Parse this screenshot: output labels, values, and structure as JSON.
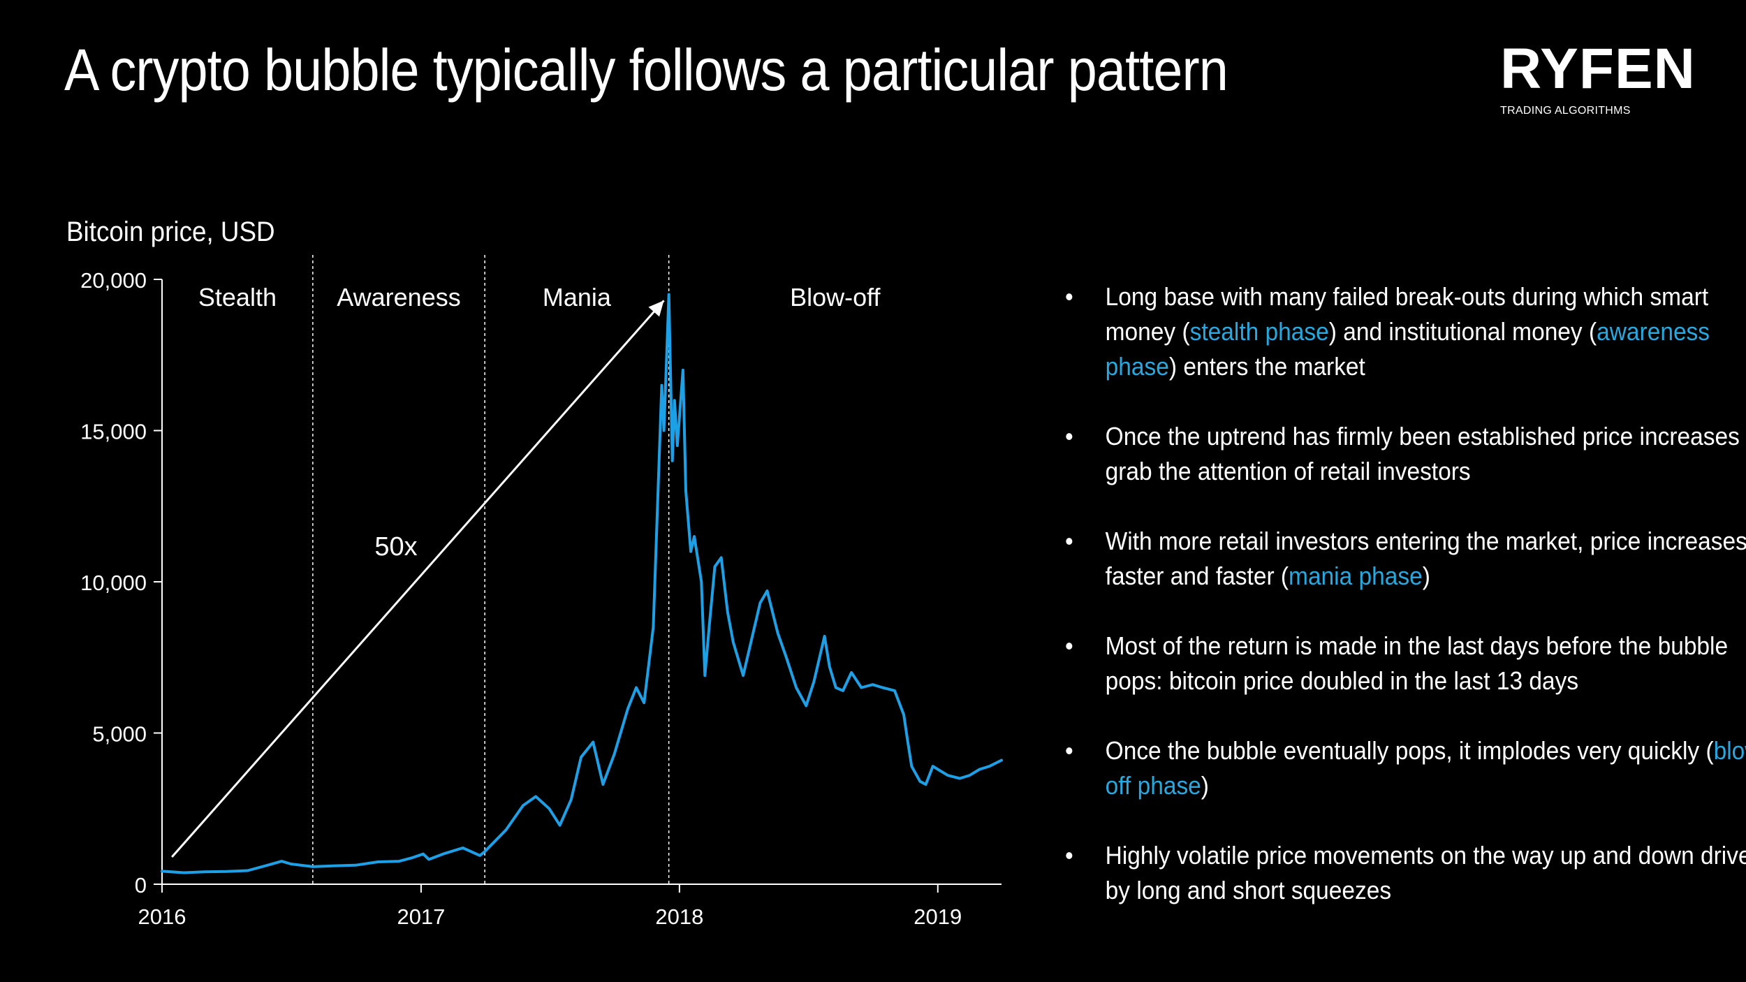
{
  "title": "A crypto bubble typically follows a particular pattern",
  "logo": {
    "name": "RYFEN",
    "subtitle": "TRADING ALGORITHMS"
  },
  "colors": {
    "background": "#000000",
    "text": "#ffffff",
    "series": "#1ea0e6",
    "highlight": "#27a8e0"
  },
  "chart_data": {
    "type": "line",
    "title": "",
    "ylabel": "Bitcoin price, USD",
    "xlabel": "",
    "ylim": [
      0,
      20000
    ],
    "y_ticks": [
      0,
      5000,
      10000,
      15000,
      20000
    ],
    "y_tick_labels": [
      "0",
      "5,000",
      "10,000",
      "15,000",
      "20,000"
    ],
    "xlim": [
      "2016-01-01",
      "2019-04-01"
    ],
    "x_ticks": [
      "2016-01-01",
      "2017-01-01",
      "2018-01-01",
      "2019-01-01"
    ],
    "x_tick_labels": [
      "2016",
      "2017",
      "2018",
      "2019"
    ],
    "grid": false,
    "phases": [
      {
        "label": "Stealth",
        "start": "2016-01-01",
        "end": "2016-08-01"
      },
      {
        "label": "Awareness",
        "start": "2016-08-01",
        "end": "2017-04-01"
      },
      {
        "label": "Mania",
        "start": "2017-04-01",
        "end": "2017-12-17"
      },
      {
        "label": "Blow-off",
        "start": "2017-12-17",
        "end": "2019-04-01"
      }
    ],
    "arrow": {
      "label": "50x",
      "from": {
        "date": "2016-01-15",
        "value": 900
      },
      "to": {
        "date": "2017-12-10",
        "value": 19300
      }
    },
    "series": [
      {
        "x": [
          "2016-01-01",
          "2016-02-01",
          "2016-03-01",
          "2016-04-01",
          "2016-05-01",
          "2016-06-01",
          "2016-06-18",
          "2016-07-01",
          "2016-08-01",
          "2016-09-01",
          "2016-10-01",
          "2016-11-01",
          "2016-12-01",
          "2016-12-20",
          "2017-01-04",
          "2017-01-12",
          "2017-02-01",
          "2017-03-01",
          "2017-03-25",
          "2017-04-01",
          "2017-05-01",
          "2017-05-25",
          "2017-06-12",
          "2017-07-01",
          "2017-07-16",
          "2017-08-01",
          "2017-08-15",
          "2017-09-01",
          "2017-09-15",
          "2017-10-01",
          "2017-10-20",
          "2017-11-01",
          "2017-11-12",
          "2017-11-25",
          "2017-12-07",
          "2017-12-10",
          "2017-12-14",
          "2017-12-17",
          "2017-12-22",
          "2017-12-25",
          "2017-12-29",
          "2018-01-06",
          "2018-01-10",
          "2018-01-17",
          "2018-01-22",
          "2018-02-01",
          "2018-02-06",
          "2018-02-12",
          "2018-02-20",
          "2018-03-01",
          "2018-03-10",
          "2018-03-18",
          "2018-04-01",
          "2018-04-12",
          "2018-04-25",
          "2018-05-05",
          "2018-05-20",
          "2018-06-01",
          "2018-06-15",
          "2018-06-29",
          "2018-07-10",
          "2018-07-25",
          "2018-08-01",
          "2018-08-10",
          "2018-08-20",
          "2018-09-01",
          "2018-09-15",
          "2018-10-01",
          "2018-10-15",
          "2018-11-01",
          "2018-11-14",
          "2018-11-19",
          "2018-11-25",
          "2018-12-07",
          "2018-12-15",
          "2018-12-25",
          "2019-01-01",
          "2019-01-15",
          "2019-02-01",
          "2019-02-15",
          "2019-03-01",
          "2019-03-15",
          "2019-04-01"
        ],
        "values": [
          430,
          380,
          410,
          420,
          450,
          650,
          760,
          670,
          580,
          610,
          630,
          740,
          760,
          880,
          1000,
          820,
          1000,
          1200,
          950,
          1080,
          1800,
          2600,
          2900,
          2500,
          1950,
          2800,
          4200,
          4700,
          3300,
          4300,
          5800,
          6500,
          6000,
          8500,
          16500,
          15000,
          17500,
          19500,
          14000,
          16000,
          14500,
          17000,
          13000,
          11000,
          11500,
          10000,
          6900,
          8500,
          10500,
          10800,
          9000,
          8000,
          6900,
          8000,
          9300,
          9700,
          8300,
          7500,
          6500,
          5900,
          6700,
          8200,
          7200,
          6500,
          6400,
          7000,
          6500,
          6600,
          6500,
          6400,
          5600,
          4800,
          3900,
          3400,
          3300,
          3900,
          3800,
          3600,
          3500,
          3600,
          3800,
          3900,
          4100
        ]
      }
    ]
  },
  "bullets": [
    [
      {
        "text": "Long base with many failed break-outs during which smart money ("
      },
      {
        "text": "stealth phase",
        "hl": true
      },
      {
        "text": ") and institutional money ("
      },
      {
        "text": "awareness phase",
        "hl": true
      },
      {
        "text": ") enters the market"
      }
    ],
    [
      {
        "text": "Once the uptrend has firmly been established price increases grab the attention of retail investors"
      }
    ],
    [
      {
        "text": "With more retail investors entering the market, price increases faster and faster ("
      },
      {
        "text": "mania phase",
        "hl": true
      },
      {
        "text": ")"
      }
    ],
    [
      {
        "text": "Most of the return is made in the last days before the bubble pops: bitcoin price doubled in the last 13 days"
      }
    ],
    [
      {
        "text": "Once the bubble eventually pops, it implodes very quickly ("
      },
      {
        "text": "blow-off phase",
        "hl": true
      },
      {
        "text": ")"
      }
    ],
    [
      {
        "text": "Highly volatile price movements on the way up and down driven by long and short squeezes"
      }
    ]
  ]
}
